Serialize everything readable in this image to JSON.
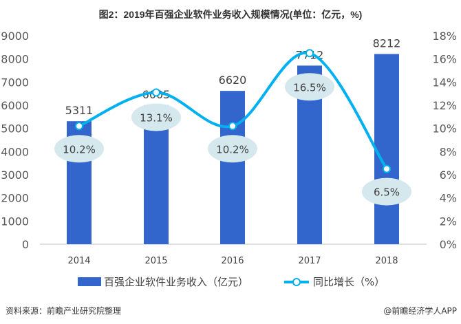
{
  "chart_data": {
    "type": "bar+line",
    "title": "图2：2019年百强企业软件业务收入规模情况(单位：亿元，%)",
    "categories": [
      "2014",
      "2015",
      "2016",
      "2017",
      "2018"
    ],
    "series": [
      {
        "name": "百强企业软件业务收入（亿元）",
        "type": "bar",
        "axis": "left",
        "values": [
          5311,
          6005,
          6620,
          7712,
          8212
        ],
        "color": "#3366cc"
      },
      {
        "name": "同比增长（%）",
        "type": "line",
        "axis": "right",
        "values": [
          10.2,
          13.1,
          10.2,
          16.5,
          6.5
        ],
        "labels": [
          "10.2%",
          "13.1%",
          "10.2%",
          "16.5%",
          "6.5%"
        ],
        "color": "#00b0f0"
      }
    ],
    "left_axis": {
      "ylim": [
        0,
        9000
      ],
      "ticks": [
        "0",
        "1000",
        "2000",
        "3000",
        "4000",
        "5000",
        "6000",
        "7000",
        "8000",
        "9000"
      ]
    },
    "right_axis": {
      "ylim": [
        0,
        18
      ],
      "ticks": [
        "0%",
        "2%",
        "4%",
        "6%",
        "8%",
        "10%",
        "12%",
        "14%",
        "16%",
        "18%"
      ]
    },
    "grid": false,
    "legend": "bottom"
  },
  "footer": {
    "source": "资料来源：前瞻产业研究院整理",
    "credit": "@前瞻经济学人APP"
  },
  "watermark": "前瞻产业研究院"
}
